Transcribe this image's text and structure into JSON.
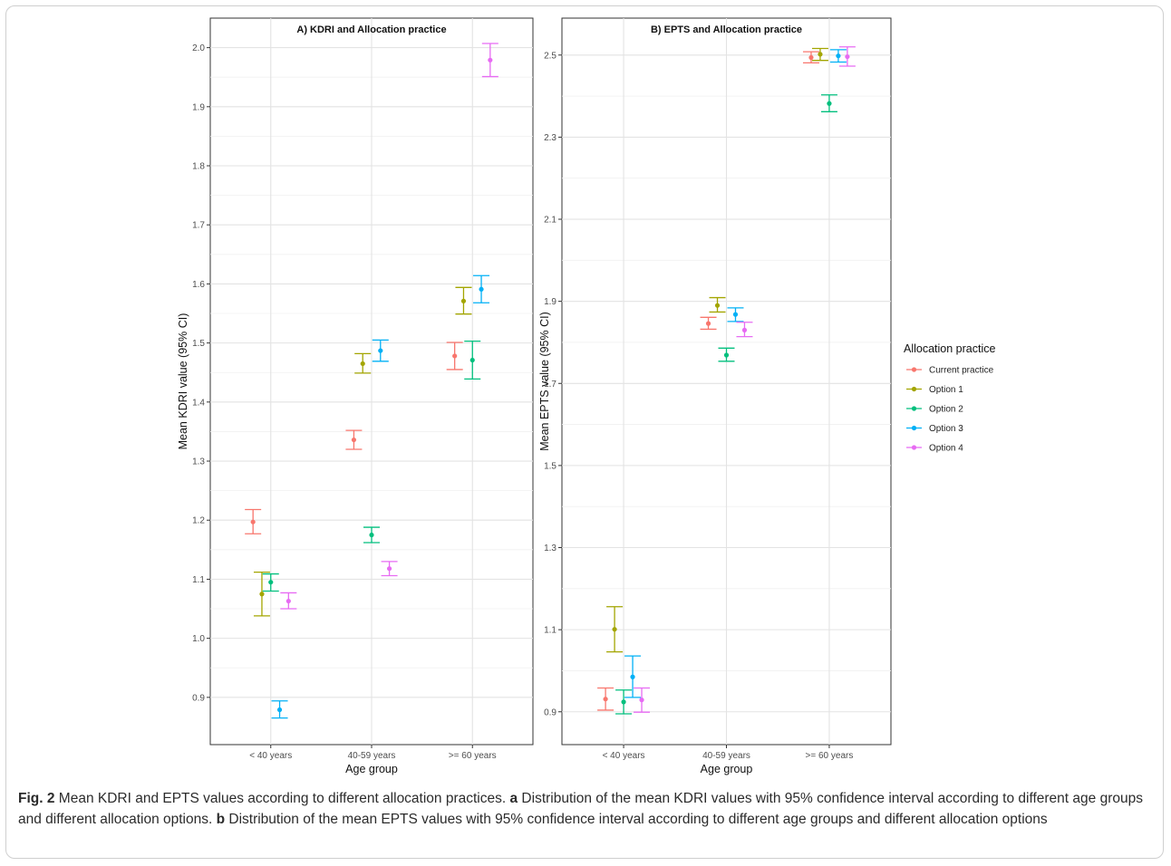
{
  "caption": {
    "fig_label": "Fig. 2",
    "seg1": " Mean KDRI and EPTS values according to different allocation practices. ",
    "a_label": "a",
    "seg2": " Distribution of the mean KDRI values with 95% confidence interval according to different age groups and different allocation options. ",
    "b_label": "b",
    "seg3": " Distribution of the mean EPTS values with 95% confidence interval according to different age groups and different allocation options"
  },
  "legend": {
    "title": "Allocation practice",
    "position": "right"
  },
  "colors": {
    "Current practice": "#f8766d",
    "Option 1": "#a3a500",
    "Option 2": "#00bf7d",
    "Option 3": "#00b0f6",
    "Option 4": "#e76bf3"
  },
  "chart_data": [
    {
      "type": "scatter",
      "error_bars": true,
      "title": "A) KDRI and Allocation practice",
      "xlabel": "Age group",
      "ylabel": "Mean KDRI value (95% CI)",
      "categories": [
        "< 40 years",
        "40-59 years",
        ">= 60 years"
      ],
      "yticks": [
        0.9,
        1.0,
        1.1,
        1.2,
        1.3,
        1.4,
        1.5,
        1.6,
        1.7,
        1.8,
        1.9,
        2.0
      ],
      "ylim": [
        0.82,
        2.05
      ],
      "grid": true,
      "series": [
        {
          "name": "Current practice",
          "values": [
            1.197,
            1.336,
            1.478
          ],
          "lower": [
            1.177,
            1.32,
            1.455
          ],
          "upper": [
            1.218,
            1.352,
            1.501
          ]
        },
        {
          "name": "Option 1",
          "values": [
            1.075,
            1.465,
            1.571
          ],
          "lower": [
            1.038,
            1.449,
            1.549
          ],
          "upper": [
            1.112,
            1.482,
            1.594
          ]
        },
        {
          "name": "Option 2",
          "values": [
            1.095,
            1.175,
            1.471
          ],
          "lower": [
            1.08,
            1.162,
            1.439
          ],
          "upper": [
            1.109,
            1.188,
            1.503
          ]
        },
        {
          "name": "Option 3",
          "values": [
            0.879,
            1.487,
            1.591
          ],
          "lower": [
            0.865,
            1.469,
            1.568
          ],
          "upper": [
            0.894,
            1.505,
            1.614
          ]
        },
        {
          "name": "Option 4",
          "values": [
            1.063,
            1.118,
            1.979
          ],
          "lower": [
            1.05,
            1.106,
            1.951
          ],
          "upper": [
            1.077,
            1.13,
            2.007
          ]
        }
      ]
    },
    {
      "type": "scatter",
      "error_bars": true,
      "title": "B) EPTS and Allocation practice",
      "xlabel": "Age group",
      "ylabel": "Mean EPTS value (95% CI)",
      "categories": [
        "< 40 years",
        "40-59 years",
        ">= 60 years"
      ],
      "yticks": [
        0.9,
        1.1,
        1.3,
        1.5,
        1.7,
        1.9,
        2.1,
        2.3,
        2.5
      ],
      "ylim": [
        0.82,
        2.59
      ],
      "grid": true,
      "series": [
        {
          "name": "Current practice",
          "values": [
            0.931,
            1.846,
            2.494
          ],
          "lower": [
            0.904,
            1.832,
            2.481
          ],
          "upper": [
            0.958,
            1.861,
            2.508
          ]
        },
        {
          "name": "Option 1",
          "values": [
            1.101,
            1.89,
            2.502
          ],
          "lower": [
            1.046,
            1.874,
            2.487
          ],
          "upper": [
            1.156,
            1.909,
            2.516
          ]
        },
        {
          "name": "Option 2",
          "values": [
            0.924,
            1.769,
            2.382
          ],
          "lower": [
            0.895,
            1.754,
            2.362
          ],
          "upper": [
            0.953,
            1.786,
            2.403
          ]
        },
        {
          "name": "Option 3",
          "values": [
            0.985,
            1.868,
            2.498
          ],
          "lower": [
            0.935,
            1.851,
            2.483
          ],
          "upper": [
            1.036,
            1.884,
            2.513
          ]
        },
        {
          "name": "Option 4",
          "values": [
            0.929,
            1.83,
            2.496
          ],
          "lower": [
            0.899,
            1.814,
            2.473
          ],
          "upper": [
            0.958,
            1.849,
            2.52
          ]
        }
      ]
    }
  ]
}
